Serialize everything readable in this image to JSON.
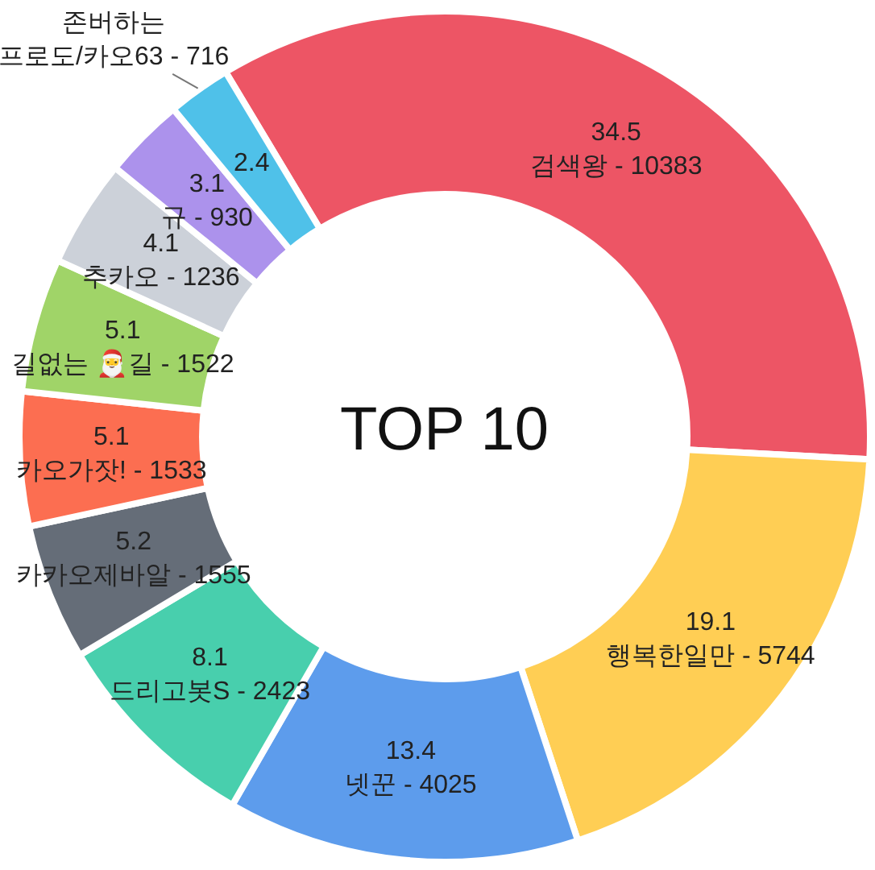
{
  "chart_data": {
    "type": "donut",
    "title": "TOP 10",
    "categories": [
      "검색왕 - 10383",
      "행복한일만 - 5744",
      "넷꾼 - 4025",
      "드리고봇S - 2423",
      "카카오제바알 - 1555",
      "카오가잣! - 1533",
      "길없는 🎅길 - 1522",
      "추카오 - 1236",
      "규 - 930",
      "존버하는 프로도/카오63 - 716"
    ],
    "values": [
      34.5,
      19.1,
      13.4,
      8.1,
      5.2,
      5.1,
      5.1,
      4.1,
      3.1,
      2.4
    ],
    "colors": [
      "#ed5565",
      "#ffce54",
      "#5d9cec",
      "#48cfad",
      "#656d78",
      "#fc6e51",
      "#a0d468",
      "#ccd1d9",
      "#ac92ec",
      "#4fc1e9"
    ],
    "data_labels": true
  }
}
